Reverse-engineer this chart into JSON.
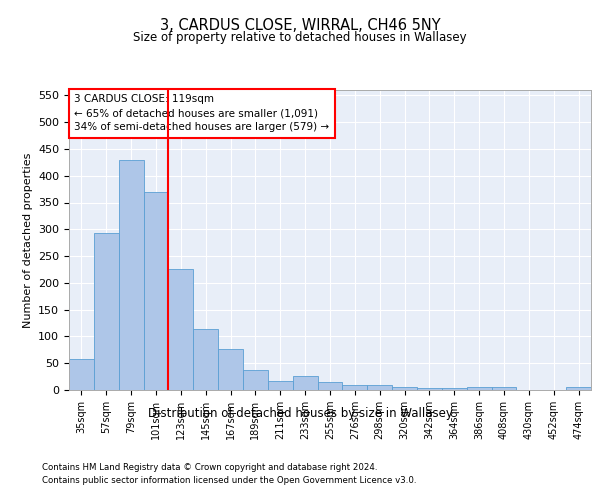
{
  "title": "3, CARDUS CLOSE, WIRRAL, CH46 5NY",
  "subtitle": "Size of property relative to detached houses in Wallasey",
  "xlabel": "Distribution of detached houses by size in Wallasey",
  "ylabel": "Number of detached properties",
  "categories": [
    "35sqm",
    "57sqm",
    "79sqm",
    "101sqm",
    "123sqm",
    "145sqm",
    "167sqm",
    "189sqm",
    "211sqm",
    "233sqm",
    "255sqm",
    "276sqm",
    "298sqm",
    "320sqm",
    "342sqm",
    "364sqm",
    "386sqm",
    "408sqm",
    "430sqm",
    "452sqm",
    "474sqm"
  ],
  "values": [
    57,
    293,
    430,
    370,
    226,
    113,
    76,
    38,
    17,
    27,
    15,
    10,
    10,
    6,
    4,
    4,
    5,
    5,
    0,
    0,
    5
  ],
  "bar_color": "#aec6e8",
  "bar_edge_color": "#5a9fd4",
  "annotation_line1": "3 CARDUS CLOSE: 119sqm",
  "annotation_line2": "← 65% of detached houses are smaller (1,091)",
  "annotation_line3": "34% of semi-detached houses are larger (579) →",
  "ylim": [
    0,
    560
  ],
  "yticks": [
    0,
    50,
    100,
    150,
    200,
    250,
    300,
    350,
    400,
    450,
    500,
    550
  ],
  "bg_color": "#e8eef8",
  "footer_line1": "Contains HM Land Registry data © Crown copyright and database right 2024.",
  "footer_line2": "Contains public sector information licensed under the Open Government Licence v3.0."
}
